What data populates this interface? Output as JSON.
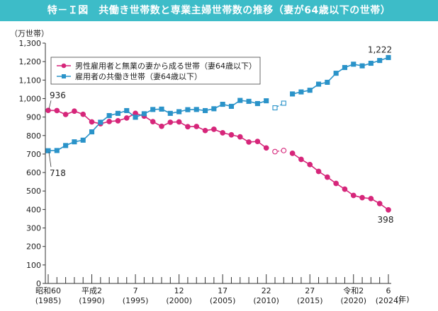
{
  "title": "特－Ｉ図　共働き世帯数と専業主婦世帯数の推移（妻が64歳以下の世帯）",
  "chart_data": {
    "type": "line",
    "ylabel": "（万世帯）",
    "xunit": "(年)",
    "ylim": [
      0,
      1300
    ],
    "yticks": [
      0,
      100,
      200,
      300,
      400,
      500,
      600,
      700,
      800,
      900,
      1000,
      1100,
      1200,
      1300
    ],
    "ytick_labels": [
      "0",
      "100",
      "200",
      "300",
      "400",
      "500",
      "600",
      "700",
      "800",
      "900",
      "1,000",
      "1,100",
      "1,200",
      "1,300"
    ],
    "x_years": [
      1985,
      1986,
      1987,
      1988,
      1989,
      1990,
      1991,
      1992,
      1993,
      1994,
      1995,
      1996,
      1997,
      1998,
      1999,
      2000,
      2001,
      2002,
      2003,
      2004,
      2005,
      2006,
      2007,
      2008,
      2009,
      2010,
      2011,
      2012,
      2013,
      2014,
      2015,
      2016,
      2017,
      2018,
      2019,
      2020,
      2021,
      2022,
      2023,
      2024
    ],
    "x_tick_labels": [
      {
        "year": 1985,
        "era": "昭和60",
        "western": "(1985)"
      },
      {
        "year": 1990,
        "era": "平成2",
        "western": "(1990)"
      },
      {
        "year": 1995,
        "era": "7",
        "western": "(1995)"
      },
      {
        "year": 2000,
        "era": "12",
        "western": "(2000)"
      },
      {
        "year": 2005,
        "era": "17",
        "western": "(2005)"
      },
      {
        "year": 2010,
        "era": "22",
        "western": "(2010)"
      },
      {
        "year": 2015,
        "era": "27",
        "western": "(2015)"
      },
      {
        "year": 2020,
        "era": "令和2",
        "western": "(2020)"
      },
      {
        "year": 2024,
        "era": "6",
        "western": "(2024)"
      }
    ],
    "series": [
      {
        "name": "男性雇用者と無業の妻から成る世帯（妻64歳以下）",
        "marker": "circle",
        "color": "#d6267a",
        "values": [
          936,
          935,
          914,
          932,
          915,
          874,
          864,
          876,
          880,
          895,
          920,
          905,
          875,
          850,
          872,
          874,
          848,
          849,
          827,
          834,
          815,
          804,
          793,
          765,
          768,
          733,
          713,
          719,
          704,
          671,
          643,
          606,
          575,
          541,
          510,
          476,
          464,
          459,
          432,
          398
        ],
        "estimated_years": [
          2011,
          2012
        ]
      },
      {
        "name": "雇用者の共働き世帯（妻64歳以下）",
        "marker": "square",
        "color": "#2a93c9",
        "values": [
          718,
          719,
          746,
          766,
          775,
          820,
          872,
          908,
          920,
          935,
          899,
          918,
          941,
          943,
          920,
          929,
          940,
          941,
          935,
          945,
          969,
          958,
          990,
          985,
          973,
          988,
          950,
          975,
          1025,
          1036,
          1045,
          1078,
          1088,
          1137,
          1168,
          1186,
          1177,
          1191,
          1206,
          1222
        ],
        "estimated_years": [
          2011,
          2012
        ]
      }
    ],
    "gap_year": 2011,
    "annotations": [
      {
        "text": "936",
        "series": 0,
        "year": 1985
      },
      {
        "text": "718",
        "series": 1,
        "year": 1985
      },
      {
        "text": "1,222",
        "series": 1,
        "year": 2024
      },
      {
        "text": "398",
        "series": 0,
        "year": 2024
      }
    ],
    "legend_position": "top-left",
    "grid": false
  }
}
